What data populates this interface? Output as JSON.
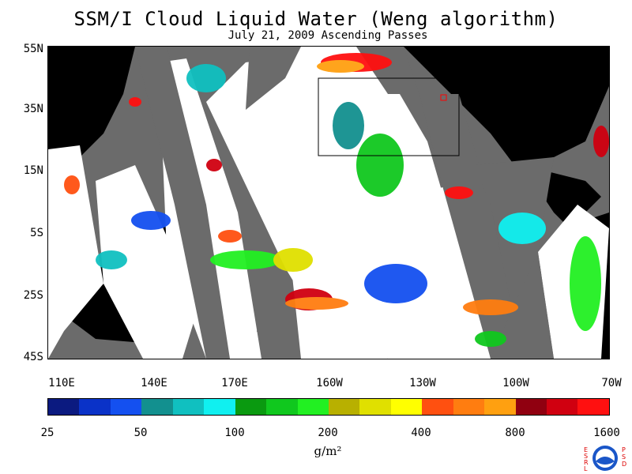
{
  "title": "SSM/I Cloud Liquid Water (Weng algorithm)",
  "subtitle": "July 21, 2009  Ascending Passes",
  "lat_labels": [
    "55N",
    "35N",
    "15N",
    "5S",
    "25S",
    "45S"
  ],
  "lon_labels": [
    "110E",
    "140E",
    "170E",
    "160W",
    "130W",
    "100W",
    "70W"
  ],
  "colorbar": {
    "labels": [
      "25",
      "50",
      "100",
      "200",
      "400",
      "800",
      "1600"
    ],
    "colors": [
      "#0b1a80",
      "#0a32c8",
      "#1450f0",
      "#12908f",
      "#10c0c0",
      "#10f0f0",
      "#0a9a10",
      "#10c81e",
      "#22f022",
      "#b8b000",
      "#e0e000",
      "#ffff00",
      "#ff5010",
      "#ff7d10",
      "#ffa010",
      "#900010",
      "#d00010",
      "#ff1010"
    ],
    "units": "g/m²"
  },
  "logo": {
    "left_text": "ESRL",
    "right_text": "PSD",
    "center": "NOAA"
  },
  "colors": {
    "land": "#000000",
    "no_data": "#6b6b6b",
    "clear": "#ffffff",
    "box": "#000000",
    "marker": "#ff0000"
  }
}
